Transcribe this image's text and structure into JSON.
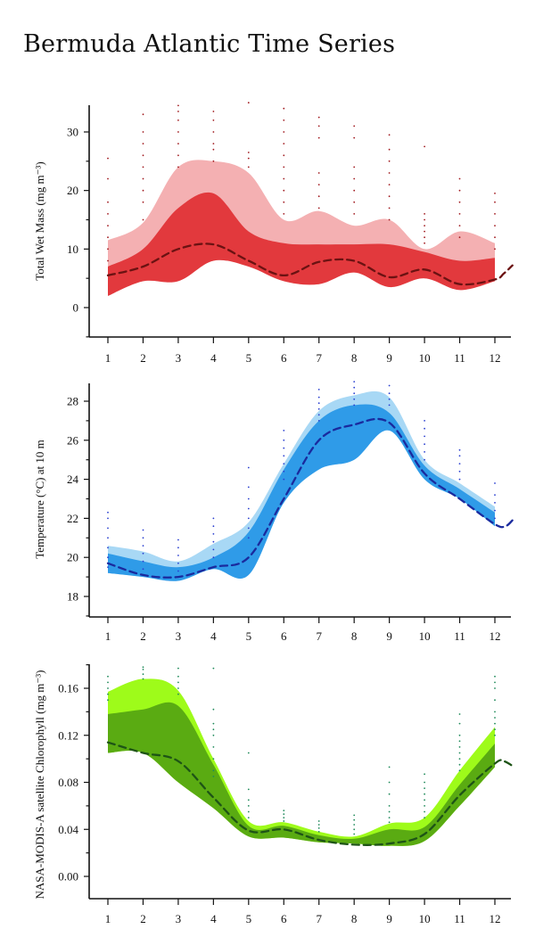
{
  "title": "Bermuda Atlantic Time Series",
  "chart_data": [
    {
      "type": "area",
      "name": "wet-mass",
      "ylabel": "Total Wet Mass (mg m⁻³)",
      "xticks": [
        "1",
        "2",
        "3",
        "4",
        "5",
        "6",
        "7",
        "8",
        "9",
        "10",
        "11",
        "12"
      ],
      "yticks": [
        0,
        10,
        20,
        30
      ],
      "ylim": [
        -5,
        35
      ],
      "xlim": [
        0.5,
        12.5
      ],
      "colors": {
        "outer": "#f4b0b2",
        "inner": "#e2393d",
        "median": "#6b1212",
        "dots": "#a11a1f"
      },
      "x": [
        1,
        2,
        3,
        4,
        5,
        6,
        7,
        8,
        9,
        10,
        11,
        12
      ],
      "outer_upper": [
        11.5,
        14.5,
        24.0,
        25.0,
        23.0,
        15.0,
        16.5,
        14.0,
        15.0,
        10.0,
        13.0,
        11.0
      ],
      "outer_lower": [
        2.0,
        4.5,
        4.5,
        8.0,
        7.0,
        4.5,
        4.0,
        6.0,
        3.5,
        5.0,
        3.0,
        4.5
      ],
      "inner_upper": [
        7.0,
        10.0,
        17.0,
        19.5,
        13.0,
        11.0,
        10.8,
        10.8,
        10.8,
        9.5,
        8.0,
        8.5
      ],
      "inner_lower": [
        2.0,
        4.5,
        4.5,
        8.0,
        7.0,
        4.5,
        4.0,
        6.0,
        3.5,
        5.0,
        3.0,
        4.5
      ],
      "median": [
        5.5,
        7.0,
        10.0,
        10.8,
        8.0,
        5.5,
        7.8,
        8.0,
        5.2,
        6.5,
        4.0,
        4.8
      ],
      "median_tail": [
        [
          12.0,
          4.8
        ],
        [
          12.25,
          5.8
        ],
        [
          12.5,
          7.2
        ]
      ],
      "scatter": {
        "1": [
          8,
          10,
          12,
          14,
          16,
          18,
          22,
          25.5
        ],
        "2": [
          15,
          18,
          20,
          22,
          24,
          26,
          28,
          30,
          33
        ],
        "3": [
          24,
          26,
          28,
          30,
          32,
          33.5,
          34.5
        ],
        "4": [
          25,
          27,
          28,
          30,
          32,
          33.5
        ],
        "5": [
          24,
          25.5,
          26.5,
          35
        ],
        "6": [
          16,
          18,
          20,
          22,
          24,
          26,
          28,
          30,
          32,
          34
        ],
        "7": [
          17,
          19,
          21,
          23,
          29,
          31,
          32.5
        ],
        "8": [
          16,
          18,
          20,
          22,
          24,
          29,
          31
        ],
        "9": [
          15,
          17,
          19,
          21,
          23,
          25,
          27,
          29.5
        ],
        "10": [
          11,
          12,
          13,
          14,
          15,
          16,
          27.5
        ],
        "11": [
          12,
          14,
          16,
          18,
          20,
          22
        ],
        "12": [
          10,
          12,
          14,
          16,
          18,
          19.5
        ]
      }
    },
    {
      "type": "area",
      "name": "temperature",
      "ylabel": "Temperature (°C) at 10 m",
      "xticks": [
        "1",
        "2",
        "3",
        "4",
        "5",
        "6",
        "7",
        "8",
        "9",
        "10",
        "11",
        "12"
      ],
      "yticks": [
        18,
        20,
        22,
        24,
        26,
        28
      ],
      "ylim": [
        17,
        29
      ],
      "xlim": [
        0.5,
        12.5
      ],
      "colors": {
        "outer": "#a8d8f5",
        "inner": "#2f9be8",
        "median": "#1a2a9e",
        "dots": "#2a3fd0"
      },
      "x": [
        1,
        2,
        3,
        4,
        5,
        6,
        7,
        8,
        9,
        10,
        11,
        12
      ],
      "outer_upper": [
        20.6,
        20.3,
        19.8,
        20.7,
        21.8,
        24.8,
        27.5,
        28.3,
        28.2,
        25.0,
        23.8,
        22.6
      ],
      "outer_lower": [
        19.2,
        19.0,
        18.8,
        19.4,
        19.1,
        22.8,
        24.5,
        25.0,
        26.5,
        24.0,
        23.0,
        21.6
      ],
      "inner_upper": [
        20.2,
        19.8,
        19.5,
        20.0,
        21.3,
        24.5,
        27.0,
        27.8,
        27.4,
        24.7,
        23.5,
        22.3
      ],
      "inner_lower": [
        19.2,
        19.0,
        18.8,
        19.4,
        19.1,
        22.8,
        24.5,
        25.0,
        26.5,
        24.0,
        23.0,
        21.6
      ],
      "median": [
        19.7,
        19.1,
        19.0,
        19.5,
        20.0,
        23.0,
        26.0,
        26.8,
        26.9,
        24.3,
        23.0,
        21.7
      ],
      "median_tail": [
        [
          12.0,
          21.7
        ],
        [
          12.3,
          21.6
        ],
        [
          12.5,
          21.9
        ]
      ],
      "scatter": {
        "1": [
          19.5,
          20.0,
          20.5,
          21.0,
          21.5,
          22.0,
          22.3
        ],
        "2": [
          19.4,
          19.8,
          20.2,
          20.6,
          21.0,
          21.4
        ],
        "3": [
          19.3,
          19.7,
          20.1,
          20.5,
          20.9
        ],
        "4": [
          20.0,
          20.4,
          20.8,
          21.2,
          21.6,
          22.0
        ],
        "5": [
          21.0,
          21.5,
          22.0,
          22.5,
          23.0,
          23.6,
          24.6
        ],
        "6": [
          24.0,
          24.4,
          24.8,
          25.2,
          25.6,
          26.0,
          26.5
        ],
        "7": [
          27.0,
          27.3,
          27.6,
          27.9,
          28.2,
          28.6
        ],
        "8": [
          27.8,
          28.1,
          28.4,
          28.7,
          29.0
        ],
        "9": [
          27.8,
          28.1,
          28.4,
          28.8
        ],
        "10": [
          25.0,
          25.4,
          25.8,
          26.2,
          26.6,
          27.0
        ],
        "11": [
          24.0,
          24.4,
          24.8,
          25.2,
          25.5
        ],
        "12": [
          22.0,
          22.4,
          22.8,
          23.2,
          23.8
        ]
      }
    },
    {
      "type": "area",
      "name": "chlorophyll",
      "ylabel": "NASA-MODIS-A satellite Chlorophyll (mg m⁻³)",
      "xticks": [
        "1",
        "2",
        "3",
        "4",
        "5",
        "6",
        "7",
        "8",
        "9",
        "10",
        "11",
        "12"
      ],
      "yticks": [
        "0.00",
        "0.04",
        "0.08",
        "0.12",
        "0.16"
      ],
      "ylim": [
        -0.02,
        0.18
      ],
      "xlim": [
        0.5,
        12.5
      ],
      "colors": {
        "outer": "#9efb1a",
        "inner": "#5aab12",
        "median": "#1e5416",
        "dots": "#1f8a5a"
      },
      "x": [
        1,
        2,
        3,
        4,
        5,
        6,
        7,
        8,
        9,
        10,
        11,
        12
      ],
      "outer_upper": [
        0.157,
        0.168,
        0.158,
        0.1,
        0.047,
        0.046,
        0.038,
        0.034,
        0.045,
        0.05,
        0.09,
        0.127
      ],
      "outer_lower": [
        0.105,
        0.105,
        0.08,
        0.058,
        0.034,
        0.033,
        0.029,
        0.028,
        0.026,
        0.03,
        0.06,
        0.093
      ],
      "inner_upper": [
        0.138,
        0.142,
        0.145,
        0.095,
        0.043,
        0.043,
        0.035,
        0.032,
        0.04,
        0.042,
        0.078,
        0.113
      ],
      "inner_lower": [
        0.105,
        0.105,
        0.08,
        0.058,
        0.034,
        0.033,
        0.029,
        0.028,
        0.026,
        0.03,
        0.06,
        0.093
      ],
      "median": [
        0.114,
        0.105,
        0.098,
        0.067,
        0.039,
        0.04,
        0.031,
        0.027,
        0.028,
        0.036,
        0.069,
        0.096
      ],
      "median_tail": [
        [
          12.0,
          0.096
        ],
        [
          12.25,
          0.098
        ],
        [
          12.5,
          0.094
        ]
      ],
      "scatter": {
        "1": [
          0.15,
          0.155,
          0.16,
          0.165,
          0.17
        ],
        "2": [
          0.168,
          0.172,
          0.176,
          0.178
        ],
        "3": [
          0.155,
          0.16,
          0.165,
          0.17,
          0.177
        ],
        "4": [
          0.085,
          0.09,
          0.1,
          0.11,
          0.12,
          0.125,
          0.13,
          0.142,
          0.177
        ],
        "5": [
          0.05,
          0.055,
          0.06,
          0.065,
          0.074,
          0.105
        ],
        "6": [
          0.047,
          0.05,
          0.053,
          0.056
        ],
        "7": [
          0.038,
          0.041,
          0.044,
          0.047
        ],
        "8": [
          0.036,
          0.04,
          0.044,
          0.048,
          0.052
        ],
        "9": [
          0.046,
          0.05,
          0.055,
          0.06,
          0.07,
          0.08,
          0.093
        ],
        "10": [
          0.05,
          0.055,
          0.06,
          0.065,
          0.07,
          0.075,
          0.08,
          0.087
        ],
        "11": [
          0.09,
          0.095,
          0.1,
          0.105,
          0.11,
          0.115,
          0.12,
          0.13,
          0.138
        ],
        "12": [
          0.12,
          0.125,
          0.13,
          0.135,
          0.14,
          0.15,
          0.16,
          0.165,
          0.17
        ]
      }
    }
  ]
}
